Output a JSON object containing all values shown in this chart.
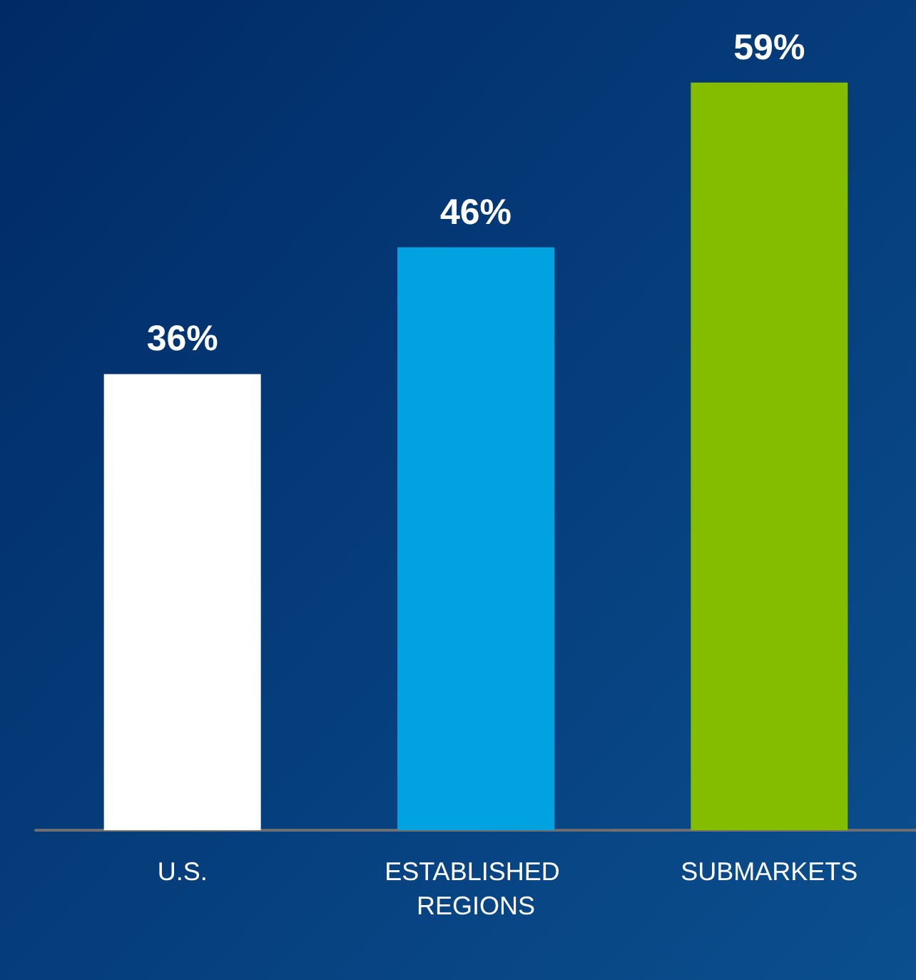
{
  "chart_data": {
    "type": "bar",
    "categories": [
      "U.S.",
      "ESTABLISHED REGIONS",
      "SUBMARKETS"
    ],
    "values": [
      36,
      46,
      59
    ],
    "colors": [
      "#ffffff",
      "#00a3e0",
      "#84bd00"
    ],
    "value_labels": [
      "36%",
      "46%",
      "59%"
    ]
  }
}
